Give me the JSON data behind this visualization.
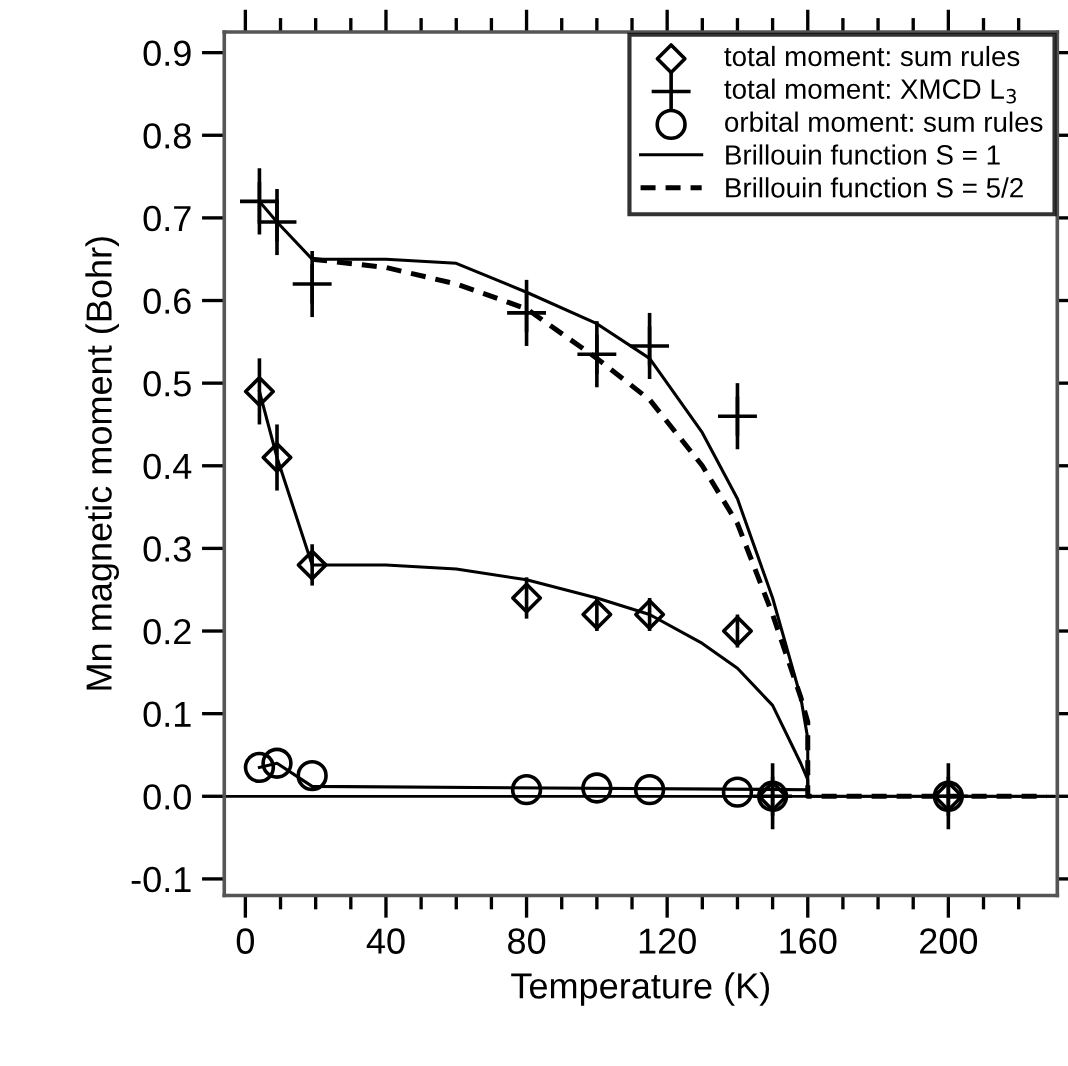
{
  "chart_data": {
    "type": "scatter",
    "xlabel": "Temperature (K)",
    "ylabel": "Mn magnetic moment (Bohr)",
    "xlim": [
      -6,
      231
    ],
    "ylim": [
      -0.12,
      0.925
    ],
    "xticks": [
      0,
      {
        "value": 10,
        "label": null
      },
      {
        "value": 20,
        "label": null
      },
      {
        "value": 30,
        "label": null
      },
      40,
      {
        "value": 50,
        "label": null
      },
      {
        "value": 60,
        "label": null
      },
      {
        "value": 70,
        "label": null
      },
      80,
      {
        "value": 90,
        "label": null
      },
      {
        "value": 100,
        "label": null
      },
      {
        "value": 110,
        "label": null
      },
      120,
      {
        "value": 130,
        "label": null
      },
      {
        "value": 140,
        "label": null
      },
      {
        "value": 150,
        "label": null
      },
      160,
      {
        "value": 170,
        "label": null
      },
      {
        "value": 180,
        "label": null
      },
      {
        "value": 190,
        "label": null
      },
      200,
      {
        "value": 210,
        "label": null
      },
      {
        "value": 220,
        "label": null
      }
    ],
    "yticks": [
      {
        "value": -0.1,
        "label": "-0.1"
      },
      {
        "value": 0.0,
        "label": "0.0"
      },
      0.1,
      0.2,
      0.3,
      0.4,
      0.5,
      0.6,
      0.7,
      0.8,
      0.9
    ],
    "grid": false,
    "legend": "top right",
    "ref_lines": [
      {
        "axis": "y",
        "value": 0,
        "color": "#000000",
        "line_style": "solid"
      }
    ],
    "series": [
      {
        "name": "total moment: sum rules",
        "marker": "diamond",
        "color": "#000000",
        "x": [
          4,
          9,
          19,
          80,
          100,
          115,
          140,
          150,
          200
        ],
        "values": [
          0.49,
          0.41,
          0.28,
          0.24,
          0.22,
          0.22,
          0.2,
          0.0,
          0.0
        ],
        "errors": [
          0.04,
          0.04,
          0.025,
          0.025,
          0.02,
          0.02,
          0.02,
          null,
          null
        ]
      },
      {
        "name": "total moment: XMCD L$_{3}$",
        "marker": "cross",
        "color": "#000000",
        "x": [
          4,
          9,
          19,
          80,
          100,
          115,
          140,
          150,
          200
        ],
        "values": [
          0.72,
          0.695,
          0.62,
          0.585,
          0.535,
          0.545,
          0.46,
          0.0,
          0.0
        ],
        "errors": [
          0.04,
          0.04,
          0.04,
          0.04,
          0.04,
          0.04,
          0.04,
          0.04,
          0.04
        ]
      },
      {
        "name": "orbital moment: sum rules",
        "marker": "circle",
        "color": "#000000",
        "x": [
          4,
          9,
          19,
          80,
          100,
          115,
          140,
          150,
          200
        ],
        "values": [
          0.035,
          0.04,
          0.025,
          0.008,
          0.01,
          0.008,
          0.005,
          0.0,
          0.0
        ]
      },
      {
        "name": "Brillouin function S = 1",
        "type": "line",
        "line_style": "solid",
        "color": "#000000",
        "x": [
          4,
          9,
          19,
          40,
          60,
          80,
          100,
          115,
          130,
          140,
          150,
          158,
          160,
          160,
          230
        ],
        "values": [
          0.72,
          0.695,
          0.65,
          0.65,
          0.645,
          0.61,
          0.572,
          0.53,
          0.44,
          0.36,
          0.24,
          0.12,
          0.07,
          0.0,
          0.0
        ]
      },
      {
        "name": "Brillouin function S = 5/2",
        "type": "line",
        "line_style": "dashed",
        "color": "#000000",
        "x": [
          19,
          40,
          60,
          80,
          100,
          115,
          130,
          140,
          150,
          158,
          160,
          160,
          228
        ],
        "values": [
          0.65,
          0.64,
          0.62,
          0.59,
          0.53,
          0.48,
          0.4,
          0.33,
          0.22,
          0.12,
          0.09,
          0.0,
          0.0
        ]
      },
      {
        "type": "line",
        "line_style": "solid",
        "color": "#000000",
        "x": [
          4,
          9,
          19,
          40,
          60,
          80,
          100,
          115,
          130,
          140,
          150,
          158,
          160,
          160
        ],
        "values": [
          0.49,
          0.41,
          0.28,
          0.28,
          0.275,
          0.262,
          0.24,
          0.22,
          0.185,
          0.155,
          0.11,
          0.04,
          0.02,
          0.0
        ]
      },
      {
        "type": "line",
        "line_style": "solid",
        "color": "#000000",
        "x": [
          4,
          9,
          19,
          160
        ],
        "values": [
          0.035,
          0.04,
          0.012,
          0.008
        ]
      }
    ]
  }
}
